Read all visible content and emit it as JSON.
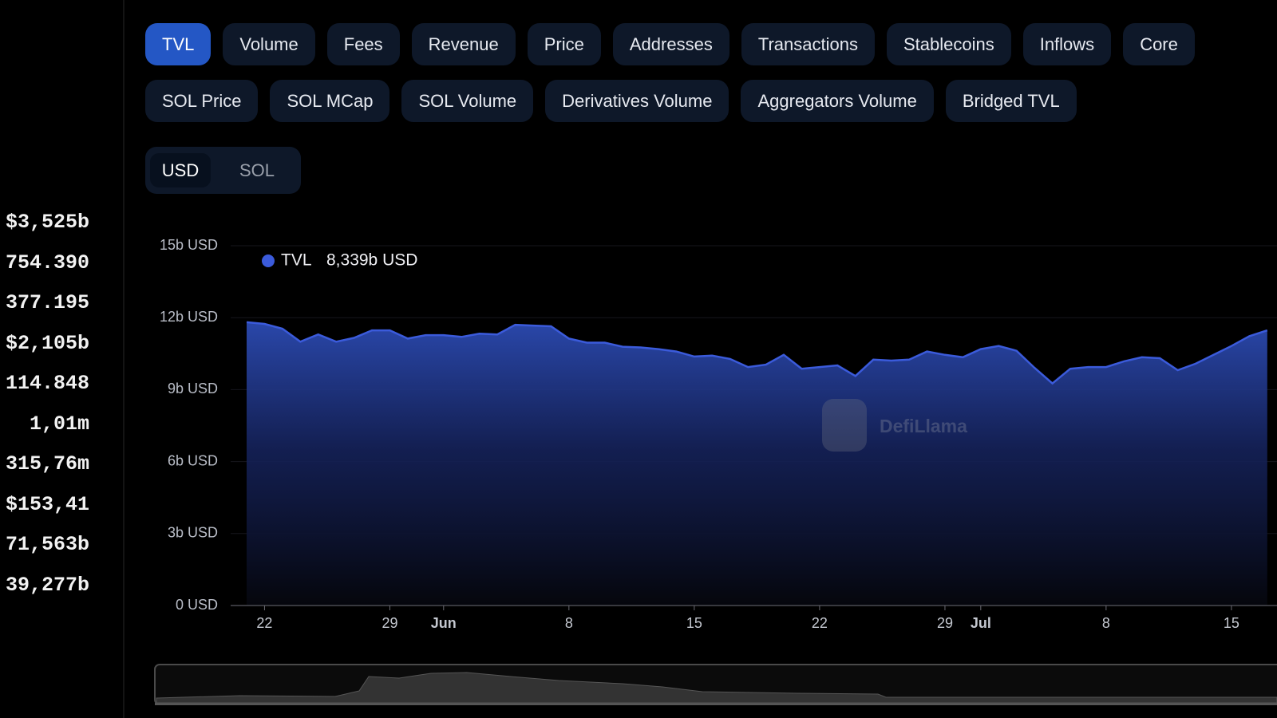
{
  "left_stats": [
    "$3,525b",
    "754.390",
    "377.195",
    "$2,105b",
    "114.848",
    "1,01m",
    "315,76m",
    "$153,41",
    "71,563b",
    "39,277b"
  ],
  "tabs": {
    "row1": [
      "TVL",
      "Volume",
      "Fees",
      "Revenue",
      "Price",
      "Addresses",
      "Transactions",
      "Stablecoins",
      "Inflows",
      "Core"
    ],
    "row2": [
      "SOL Price",
      "SOL MCap",
      "SOL Volume",
      "Derivatives Volume",
      "Aggregators Volume",
      "Bridged TVL"
    ]
  },
  "currency_toggle": [
    "USD",
    "SOL"
  ],
  "chart_data": {
    "type": "area",
    "legend_value": "8,339b USD",
    "watermark": "DefiLlama",
    "x": [
      0,
      1,
      2,
      3,
      4,
      5,
      6,
      7,
      8,
      9,
      10,
      11,
      12,
      13,
      14,
      15,
      16,
      17,
      18,
      19,
      20,
      21,
      22,
      23,
      24,
      25,
      26,
      27,
      28,
      29,
      30,
      31,
      32,
      33,
      34,
      35,
      36,
      37,
      38,
      39,
      40,
      41,
      42,
      43,
      44,
      45,
      46,
      47,
      48,
      49,
      50,
      51,
      52,
      53,
      54,
      55,
      56,
      57
    ],
    "series": [
      {
        "name": "TVL",
        "color": "#3b5bdb",
        "values": [
          11.81,
          11.74,
          11.54,
          11.0,
          11.3,
          11.0,
          11.16,
          11.47,
          11.47,
          11.13,
          11.27,
          11.27,
          11.2,
          11.33,
          11.3,
          11.7,
          11.67,
          11.64,
          11.13,
          10.96,
          10.96,
          10.79,
          10.76,
          10.69,
          10.59,
          10.38,
          10.42,
          10.28,
          9.94,
          10.04,
          10.45,
          9.87,
          9.94,
          10.01,
          9.57,
          10.25,
          10.21,
          10.25,
          10.59,
          10.45,
          10.35,
          10.69,
          10.82,
          10.62,
          9.91,
          9.26,
          9.87,
          9.94,
          9.94,
          10.18,
          10.35,
          10.31,
          9.81,
          10.08,
          10.45,
          10.82,
          11.23,
          11.47
        ]
      }
    ],
    "xlim": [
      0,
      57.5
    ],
    "xticks": [
      {
        "value": 1,
        "label": "22"
      },
      {
        "value": 8,
        "label": "29"
      },
      {
        "value": 11,
        "label": "Jun"
      },
      {
        "value": 18,
        "label": "8"
      },
      {
        "value": 25,
        "label": "15"
      },
      {
        "value": 32,
        "label": "22"
      },
      {
        "value": 39,
        "label": "29"
      },
      {
        "value": 41,
        "label": "Jul"
      },
      {
        "value": 48,
        "label": "8"
      },
      {
        "value": 55,
        "label": "15"
      }
    ],
    "ylim": [
      0,
      15
    ],
    "yticks": [
      {
        "value": 0,
        "label": "0 USD"
      },
      {
        "value": 3,
        "label": "3b USD"
      },
      {
        "value": 6,
        "label": "6b USD"
      },
      {
        "value": 9,
        "label": "9b USD"
      },
      {
        "value": 12,
        "label": "12b USD"
      },
      {
        "value": 15,
        "label": "15b USD"
      }
    ],
    "grid": true
  }
}
